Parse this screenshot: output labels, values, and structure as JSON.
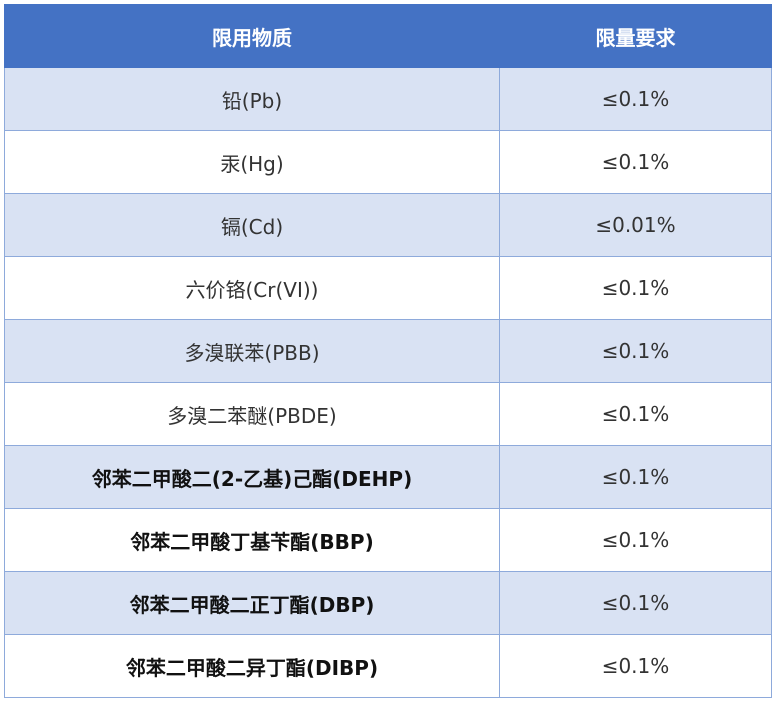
{
  "table": {
    "header": [
      "限用物质",
      "限量要求"
    ],
    "rows": [
      [
        "铅(Pb)",
        "≤0.1%"
      ],
      [
        "汞(Hg)",
        "≤0.1%"
      ],
      [
        "镉(Cd)",
        "≤0.01%"
      ],
      [
        "六价铬(Cr(VI))",
        "≤0.1%"
      ],
      [
        "多溴联苯(PBB)",
        "≤0.1%"
      ],
      [
        "多溴二苯醚(PBDE)",
        "≤0.1%"
      ],
      [
        "邻苯二甲酸二(2-乙基)己酯(DEHP)",
        "≤0.1%"
      ],
      [
        "邻苯二甲酸丁基苄酯(BBP)",
        "≤0.1%"
      ],
      [
        "邻苯二甲酸二正丁酯(DBP)",
        "≤0.1%"
      ],
      [
        "邻苯二甲酸二异丁酯(DIBP)",
        "≤0.1%"
      ]
    ]
  }
}
